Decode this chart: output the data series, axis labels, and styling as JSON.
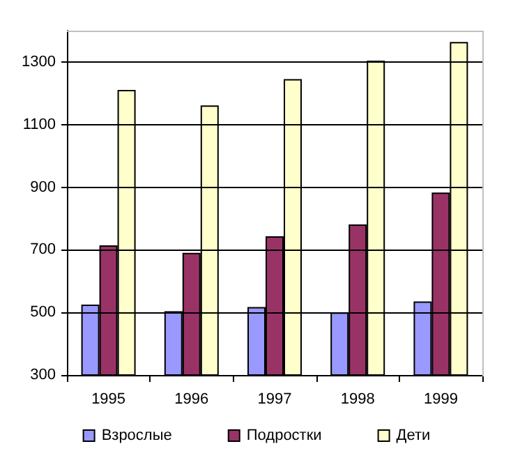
{
  "chart_data": {
    "type": "bar",
    "categories": [
      "1995",
      "1996",
      "1997",
      "1998",
      "1999"
    ],
    "series": [
      {
        "name": "Взрослые",
        "color": "#9999ff",
        "values": [
          525,
          504,
          517,
          500,
          535
        ]
      },
      {
        "name": "Подростки",
        "color": "#993366",
        "values": [
          714,
          690,
          743,
          781,
          883
        ]
      },
      {
        "name": "Дети",
        "color": "#ffffcc",
        "values": [
          1211,
          1161,
          1245,
          1304,
          1364
        ]
      }
    ],
    "ylim": [
      300,
      1400
    ],
    "yticks": [
      300,
      500,
      700,
      900,
      1100,
      1300
    ],
    "grid": "y",
    "legend": "bottom"
  }
}
